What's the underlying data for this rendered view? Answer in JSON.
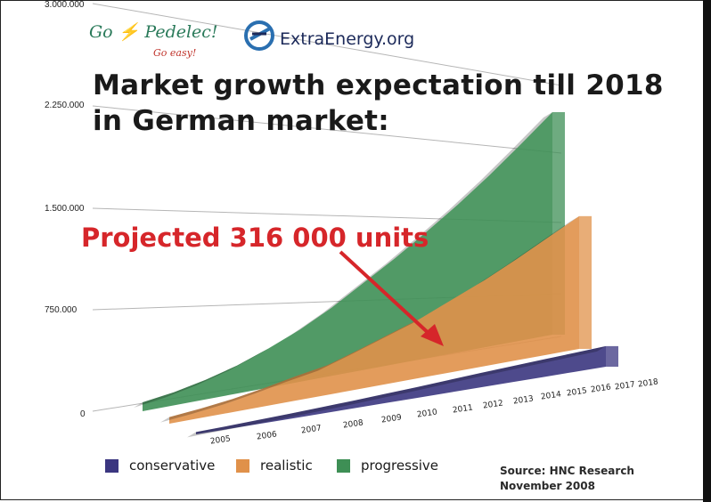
{
  "logos": {
    "gopedelec": "Go Pedelec!",
    "gopedelec_go": "Go",
    "gopedelec_name": "Pedelec!",
    "gopedelec_tagline": "Go easy!",
    "extraenergy": "ExtraEnergy.org"
  },
  "chart_data": {
    "type": "area",
    "title": "Market growth expectation till 2018 in German market:",
    "title_line1": "Market growth expectation till 2018",
    "title_line2": "in German market:",
    "ylim": [
      0,
      3000000
    ],
    "yticks": [
      "0",
      "750.000",
      "1.500.000",
      "2.250.000",
      "3.000.000"
    ],
    "ytick_values": [
      0,
      750000,
      1500000,
      2250000,
      3000000
    ],
    "categories": [
      "2005",
      "2006",
      "2007",
      "2008",
      "2009",
      "2010",
      "2011",
      "2012",
      "2013",
      "2014",
      "2015",
      "2016",
      "2017",
      "2018"
    ],
    "series": [
      {
        "name": "conservative",
        "color": "#3b3680",
        "values": [
          45000,
          60000,
          80000,
          100000,
          125000,
          150000,
          180000,
          210000,
          245000,
          280000,
          310000,
          340000,
          370000,
          400000
        ]
      },
      {
        "name": "realistic",
        "color": "#e0914a",
        "values": [
          70000,
          100000,
          140000,
          195000,
          260000,
          316000,
          420000,
          530000,
          640000,
          780000,
          920000,
          1080000,
          1250000,
          1420000
        ]
      },
      {
        "name": "progressive",
        "color": "#3e8f55",
        "values": [
          95000,
          140000,
          210000,
          300000,
          420000,
          560000,
          730000,
          930000,
          1130000,
          1350000,
          1580000,
          1830000,
          2100000,
          2380000
        ]
      }
    ],
    "annotation": "Projected 316 000 units",
    "legend_position": "bottom-left",
    "grid": true
  },
  "source": {
    "line1": "Source: HNC Research",
    "line2": "November 2008"
  }
}
